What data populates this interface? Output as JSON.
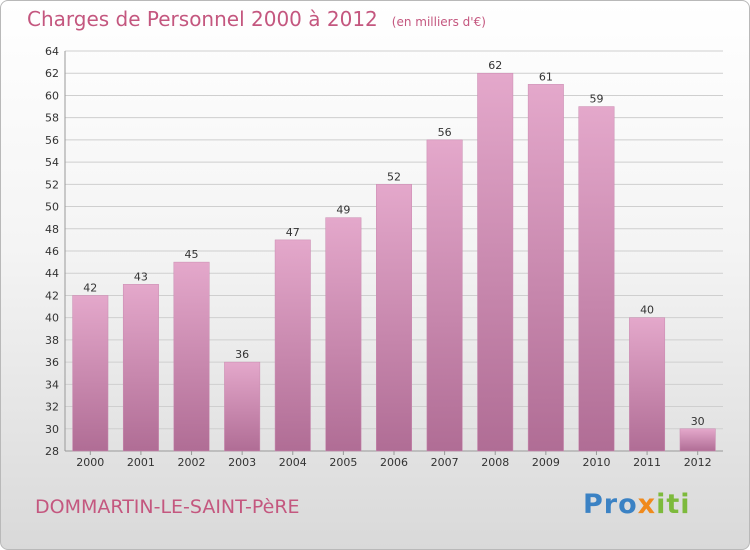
{
  "header": {
    "title": "Charges de Personnel 2000 à 2012",
    "subtitle": "(en milliers d'€)"
  },
  "footer": {
    "commune": "DOMMARTIN-LE-SAINT-PèRE",
    "brand_parts": [
      "Pro",
      "x",
      "iti"
    ]
  },
  "colors": {
    "title": "#c4577f",
    "bar_top": "#e4a8cb",
    "bar_bottom": "#b06d95",
    "grid": "#cfcfcf",
    "brand_blue": "#3b82c4",
    "brand_orange": "#f08a1c",
    "brand_green": "#7dba3c"
  },
  "chart_data": {
    "type": "bar",
    "title": "Charges de Personnel 2000 à 2012",
    "subtitle": "(en milliers d'€)",
    "categories": [
      "2000",
      "2001",
      "2002",
      "2003",
      "2004",
      "2005",
      "2006",
      "2007",
      "2008",
      "2009",
      "2010",
      "2011",
      "2012"
    ],
    "values": [
      42,
      43,
      45,
      36,
      47,
      49,
      52,
      56,
      62,
      61,
      59,
      40,
      30
    ],
    "ylim": [
      28,
      64
    ],
    "ytick_step": 2,
    "grid": true,
    "xlabel": "",
    "ylabel": ""
  }
}
